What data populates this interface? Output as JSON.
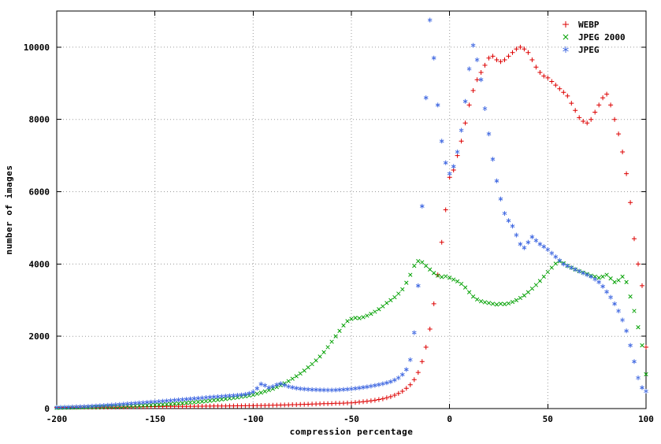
{
  "chart_data": {
    "type": "scatter",
    "title": "",
    "xlabel": "compression percentage",
    "ylabel": "number of images",
    "xlim": [
      -200,
      100
    ],
    "ylim": [
      0,
      11000
    ],
    "x_ticks": [
      -200,
      -150,
      -100,
      -50,
      0,
      50,
      100
    ],
    "y_ticks": [
      0,
      2000,
      4000,
      6000,
      8000,
      10000
    ],
    "grid": "dotted",
    "legend_position": "top-right",
    "x_start": -200,
    "x_step": 2,
    "series": [
      {
        "name": "WEBP",
        "marker": "plus",
        "color": "#dd0000",
        "values": [
          30,
          30,
          32,
          32,
          34,
          34,
          36,
          36,
          38,
          38,
          40,
          40,
          42,
          42,
          44,
          44,
          46,
          46,
          48,
          48,
          50,
          50,
          52,
          52,
          54,
          54,
          56,
          56,
          58,
          58,
          60,
          60,
          62,
          62,
          64,
          64,
          66,
          66,
          68,
          68,
          70,
          70,
          72,
          72,
          74,
          74,
          76,
          76,
          78,
          80,
          82,
          84,
          86,
          88,
          90,
          92,
          95,
          98,
          100,
          105,
          108,
          110,
          115,
          118,
          120,
          125,
          128,
          130,
          135,
          138,
          140,
          145,
          148,
          150,
          155,
          160,
          170,
          180,
          190,
          200,
          215,
          230,
          250,
          270,
          300,
          330,
          370,
          420,
          480,
          560,
          660,
          800,
          1000,
          1300,
          1700,
          2200,
          2900,
          3700,
          4600,
          5500,
          6400,
          6600,
          7000,
          7400,
          7900,
          8400,
          8800,
          9100,
          9300,
          9500,
          9700,
          9750,
          9650,
          9600,
          9650,
          9750,
          9850,
          9950,
          10000,
          9950,
          9850,
          9650,
          9450,
          9300,
          9200,
          9150,
          9050,
          8950,
          8850,
          8750,
          8650,
          8450,
          8250,
          8050,
          7950,
          7900,
          8000,
          8200,
          8400,
          8600,
          8700,
          8400,
          8000,
          7600,
          7100,
          6500,
          5700,
          4700,
          4000,
          3400,
          1700
        ]
      },
      {
        "name": "JPEG 2000",
        "marker": "cross",
        "color": "#00a000",
        "values": [
          20,
          22,
          24,
          26,
          28,
          30,
          32,
          34,
          36,
          38,
          40,
          43,
          46,
          49,
          52,
          56,
          60,
          64,
          68,
          72,
          76,
          80,
          85,
          90,
          95,
          100,
          106,
          112,
          118,
          125,
          132,
          140,
          148,
          156,
          165,
          174,
          184,
          194,
          205,
          216,
          228,
          240,
          253,
          266,
          280,
          295,
          310,
          326,
          342,
          360,
          380,
          410,
          440,
          475,
          510,
          550,
          595,
          645,
          700,
          760,
          825,
          895,
          970,
          1050,
          1140,
          1230,
          1330,
          1440,
          1560,
          1700,
          1850,
          2000,
          2150,
          2300,
          2420,
          2480,
          2510,
          2500,
          2530,
          2570,
          2620,
          2680,
          2750,
          2830,
          2920,
          3000,
          3080,
          3180,
          3300,
          3480,
          3700,
          3950,
          4080,
          4050,
          3950,
          3850,
          3750,
          3680,
          3640,
          3660,
          3620,
          3570,
          3520,
          3450,
          3350,
          3220,
          3100,
          3020,
          2970,
          2940,
          2920,
          2900,
          2880,
          2900,
          2890,
          2910,
          2950,
          3000,
          3060,
          3130,
          3220,
          3320,
          3420,
          3530,
          3650,
          3780,
          3900,
          4010,
          4080,
          4020,
          3950,
          3900,
          3850,
          3800,
          3760,
          3720,
          3680,
          3650,
          3620,
          3650,
          3700,
          3600,
          3500,
          3550,
          3650,
          3500,
          3100,
          2700,
          2250,
          1750,
          950
        ]
      },
      {
        "name": "JPEG",
        "marker": "star",
        "color": "#4169e1",
        "values": [
          30,
          33,
          36,
          40,
          44,
          48,
          52,
          57,
          62,
          68,
          74,
          80,
          87,
          94,
          101,
          108,
          116,
          124,
          132,
          140,
          148,
          156,
          164,
          172,
          180,
          188,
          196,
          205,
          214,
          223,
          232,
          241,
          250,
          259,
          268,
          277,
          286,
          295,
          304,
          313,
          322,
          330,
          338,
          346,
          354,
          362,
          370,
          380,
          395,
          420,
          460,
          560,
          680,
          640,
          580,
          610,
          660,
          690,
          650,
          610,
          585,
          565,
          550,
          540,
          532,
          525,
          520,
          516,
          513,
          511,
          512,
          515,
          520,
          527,
          535,
          545,
          557,
          570,
          585,
          602,
          620,
          640,
          662,
          686,
          712,
          745,
          790,
          850,
          940,
          1080,
          1350,
          2100,
          3400,
          5600,
          8600,
          10750,
          9700,
          8400,
          7400,
          6800,
          6500,
          6700,
          7100,
          7700,
          8500,
          9400,
          10050,
          9650,
          9100,
          8300,
          7600,
          6900,
          6300,
          5800,
          5400,
          5200,
          5050,
          4800,
          4550,
          4450,
          4600,
          4750,
          4650,
          4550,
          4480,
          4400,
          4300,
          4200,
          4100,
          4000,
          3950,
          3900,
          3850,
          3800,
          3750,
          3700,
          3650,
          3580,
          3500,
          3380,
          3230,
          3080,
          2900,
          2700,
          2450,
          2150,
          1750,
          1300,
          850,
          580,
          480
        ]
      }
    ]
  }
}
